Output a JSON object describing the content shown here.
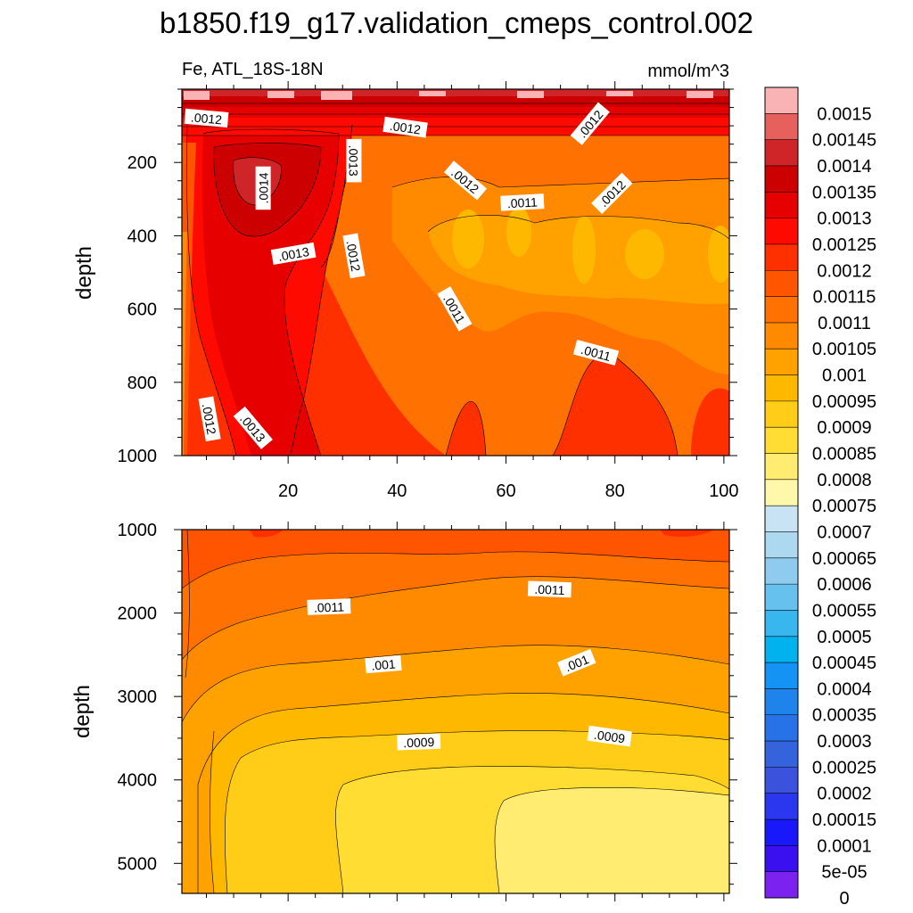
{
  "chart_data": {
    "type": "heatmap",
    "title": "b1850.f19_g17.validation_cmeps_control.002",
    "subtitle_left": "Fe, ATL_18S-18N",
    "subtitle_right": "mmol/m^3",
    "colorbar": {
      "labels": [
        "0.0015",
        "0.00145",
        "0.0014",
        "0.00135",
        "0.0013",
        "0.00125",
        "0.0012",
        "0.00115",
        "0.0011",
        "0.00105",
        "0.001",
        "0.00095",
        "0.0009",
        "0.00085",
        "0.0008",
        "0.00075",
        "0.0007",
        "0.00065",
        "0.0006",
        "0.00055",
        "0.0005",
        "0.00045",
        "0.0004",
        "0.00035",
        "0.0003",
        "0.00025",
        "0.0002",
        "0.00015",
        "0.0001",
        "5e-05",
        "0"
      ],
      "colors": [
        "#f9b3b4",
        "#e6605c",
        "#cf2528",
        "#cc0000",
        "#e60000",
        "#ff0a00",
        "#ff3000",
        "#ff5500",
        "#ff7100",
        "#ff8a00",
        "#ffa200",
        "#ffb800",
        "#ffcc18",
        "#ffdd33",
        "#ffec70",
        "#fff8aa",
        "#c8e4f4",
        "#acd8f0",
        "#8ecbee",
        "#67c1ee",
        "#38b6ee",
        "#00b2ee",
        "#1493f5",
        "#1e84ec",
        "#2872e8",
        "#3463dc",
        "#3a52dc",
        "#2a37ee",
        "#1818fa",
        "#3a10f0",
        "#7c22f0"
      ]
    },
    "panels": [
      {
        "name": "upper",
        "xlabel": "",
        "ylabel": "depth",
        "xlim": [
          0.5,
          101
        ],
        "ylim": [
          1000,
          0
        ],
        "xticks": [
          20,
          40,
          60,
          80,
          100
        ],
        "xticklabels": [
          "20",
          "40",
          "60",
          "80",
          "100"
        ],
        "yticks": [
          200,
          400,
          600,
          800,
          1000
        ],
        "yticklabels": [
          "200",
          "400",
          "600",
          "800",
          "1000"
        ],
        "contour_labels": [
          {
            "text": ".0012",
            "x": 5,
            "y": 80,
            "angle": 5
          },
          {
            "text": ".0012",
            "x": 41.5,
            "y": 105,
            "angle": 8
          },
          {
            "text": ".0012",
            "x": 75.5,
            "y": 95,
            "angle": -50
          },
          {
            "text": ".0013",
            "x": 32,
            "y": 195,
            "angle": 90
          },
          {
            "text": ".0014",
            "x": 15.5,
            "y": 270,
            "angle": -90
          },
          {
            "text": ".0012",
            "x": 52.5,
            "y": 250,
            "angle": 40
          },
          {
            "text": ".0012",
            "x": 79.5,
            "y": 285,
            "angle": -45
          },
          {
            "text": ".0011",
            "x": 63,
            "y": 310,
            "angle": -3
          },
          {
            "text": ".0013",
            "x": 21,
            "y": 450,
            "angle": -10
          },
          {
            "text": ".0012",
            "x": 32,
            "y": 455,
            "angle": 80
          },
          {
            "text": ".0011",
            "x": 50.5,
            "y": 600,
            "angle": 60
          },
          {
            "text": ".0011",
            "x": 76.5,
            "y": 720,
            "angle": 15
          },
          {
            "text": ".0012",
            "x": 5.5,
            "y": 900,
            "angle": 80
          },
          {
            "text": ".0013",
            "x": 13.5,
            "y": 925,
            "angle": 50
          }
        ]
      },
      {
        "name": "lower",
        "xlabel": "",
        "ylabel": "depth",
        "xlim": [
          0.5,
          101
        ],
        "ylim": [
          5360,
          1000
        ],
        "xticks": [
          20,
          40,
          60,
          80,
          100
        ],
        "yticks": [
          1000,
          2000,
          3000,
          4000,
          5000
        ],
        "yticklabels": [
          "1000",
          "2000",
          "3000",
          "4000",
          "5000"
        ],
        "contour_labels": [
          {
            "text": ".0011",
            "x": 27.5,
            "y": 1930,
            "angle": -2
          },
          {
            "text": ".0011",
            "x": 68,
            "y": 1720,
            "angle": 2
          },
          {
            "text": ".001",
            "x": 37.5,
            "y": 2620,
            "angle": -5
          },
          {
            "text": ".001",
            "x": 73,
            "y": 2600,
            "angle": -22
          },
          {
            "text": ".0009",
            "x": 44,
            "y": 3550,
            "angle": -2
          },
          {
            "text": ".0009",
            "x": 79,
            "y": 3480,
            "angle": 8
          }
        ]
      }
    ]
  }
}
